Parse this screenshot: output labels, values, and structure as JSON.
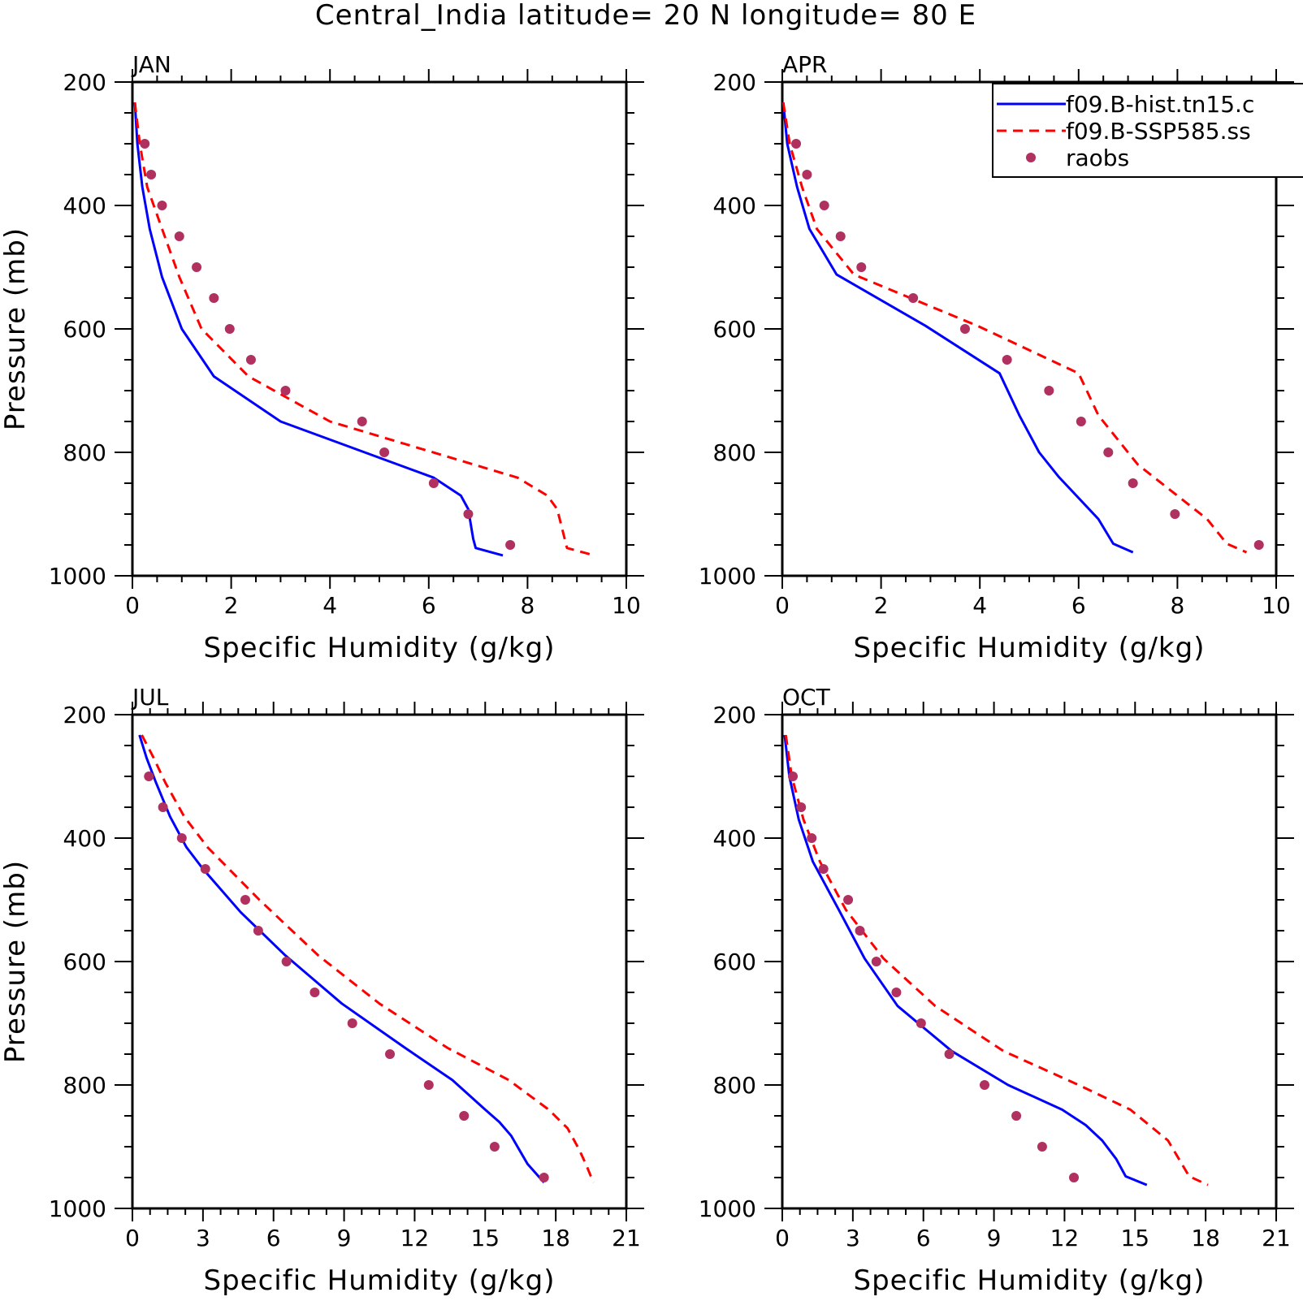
{
  "suptitle": "Central_India  latitude= 20 N longitude= 80 E",
  "legend": {
    "placement": "top-right",
    "entries": [
      {
        "label": "f09.B-hist.tn15.c",
        "color": "#0000ff",
        "style": "solid"
      },
      {
        "label": "f09.B-SSP585.ss",
        "color": "#ff0000",
        "style": "dashed"
      },
      {
        "label": "raobs",
        "color": "#b03060",
        "style": "dot"
      }
    ]
  },
  "chart_data": [
    {
      "type": "line",
      "title": "JAN",
      "xlabel": "Specific Humidity (g/kg)",
      "ylabel": "Pressure (mb)",
      "xlim": [
        0,
        10
      ],
      "ylim": [
        1000,
        200
      ],
      "xticks": [
        "0",
        "2",
        "4",
        "6",
        "8",
        "10"
      ],
      "yticks": [
        "200",
        "400",
        "600",
        "800",
        "1000"
      ],
      "series": [
        {
          "name": "f09.B-hist.tn15.c",
          "color": "#0000ff",
          "style": "solid",
          "x": [
            0.05,
            0.1,
            0.2,
            0.35,
            0.6,
            1.0,
            1.65,
            3.0,
            6.1,
            6.65,
            6.8,
            6.9,
            6.95,
            7.5
          ],
          "y": [
            233,
            300,
            370,
            438,
            516,
            600,
            677,
            750,
            841,
            870,
            892,
            940,
            955,
            967
          ]
        },
        {
          "name": "f09.B-SSP585.ss",
          "color": "#ff0000",
          "style": "dashed",
          "x": [
            0.05,
            0.15,
            0.3,
            0.6,
            0.95,
            1.4,
            2.35,
            4.0,
            7.8,
            8.4,
            8.6,
            8.8,
            9.35
          ],
          "y": [
            233,
            300,
            370,
            438,
            516,
            600,
            677,
            750,
            841,
            870,
            892,
            955,
            967
          ]
        },
        {
          "name": "raobs",
          "color": "#b03060",
          "style": "dot",
          "x": [
            0.25,
            0.38,
            0.6,
            0.95,
            1.3,
            1.65,
            1.97,
            2.4,
            3.1,
            4.65,
            5.1,
            6.1,
            6.8,
            7.65
          ],
          "y": [
            300,
            350,
            400,
            450,
            500,
            550,
            600,
            650,
            700,
            750,
            800,
            850,
            900,
            950
          ]
        }
      ]
    },
    {
      "type": "line",
      "title": "APR",
      "xlabel": "Specific Humidity (g/kg)",
      "ylabel": "",
      "xlim": [
        0,
        10
      ],
      "ylim": [
        1000,
        200
      ],
      "xticks": [
        "0",
        "2",
        "4",
        "6",
        "8",
        "10"
      ],
      "yticks": [
        "200",
        "400",
        "600",
        "800",
        "1000"
      ],
      "series": [
        {
          "name": "f09.B-hist.tn15.c",
          "color": "#0000ff",
          "style": "solid",
          "x": [
            0.02,
            0.1,
            0.3,
            0.55,
            1.1,
            2.9,
            4.4,
            4.8,
            5.2,
            5.6,
            6.4,
            6.7,
            7.1
          ],
          "y": [
            233,
            300,
            370,
            438,
            512,
            595,
            672,
            740,
            800,
            840,
            908,
            948,
            962
          ]
        },
        {
          "name": "f09.B-SSP585.ss",
          "color": "#ff0000",
          "style": "dashed",
          "x": [
            0.02,
            0.15,
            0.4,
            0.7,
            1.45,
            3.95,
            6.0,
            6.4,
            7.2,
            8.6,
            9.0,
            9.4
          ],
          "y": [
            233,
            300,
            370,
            438,
            512,
            595,
            672,
            740,
            820,
            908,
            948,
            962
          ]
        },
        {
          "name": "raobs",
          "color": "#b03060",
          "style": "dot",
          "x": [
            0.28,
            0.5,
            0.85,
            1.18,
            1.6,
            2.65,
            3.7,
            4.55,
            5.4,
            6.05,
            6.6,
            7.1,
            7.95,
            9.65
          ],
          "y": [
            300,
            350,
            400,
            450,
            500,
            550,
            600,
            650,
            700,
            750,
            800,
            850,
            900,
            950
          ]
        }
      ]
    },
    {
      "type": "line",
      "title": "JUL",
      "xlabel": "Specific Humidity (g/kg)",
      "ylabel": "Pressure (mb)",
      "xlim": [
        0,
        21
      ],
      "ylim": [
        1000,
        200
      ],
      "xticks": [
        "0",
        "3",
        "6",
        "9",
        "12",
        "15",
        "18",
        "21"
      ],
      "yticks": [
        "200",
        "400",
        "600",
        "800",
        "1000"
      ],
      "series": [
        {
          "name": "f09.B-hist.tn15.c",
          "color": "#0000ff",
          "style": "solid",
          "x": [
            0.3,
            0.6,
            1.0,
            1.6,
            2.3,
            3.0,
            4.6,
            6.5,
            8.9,
            11.6,
            13.6,
            15.0,
            15.6,
            16.1,
            16.8,
            17.5
          ],
          "y": [
            233,
            270,
            310,
            365,
            415,
            450,
            520,
            590,
            668,
            740,
            792,
            840,
            860,
            882,
            928,
            958
          ]
        },
        {
          "name": "f09.B-SSP585.ss",
          "color": "#ff0000",
          "style": "dashed",
          "x": [
            0.4,
            0.9,
            1.4,
            2.2,
            3.2,
            5.4,
            7.9,
            10.5,
            13.4,
            16.0,
            17.7,
            18.5,
            19.0,
            19.3,
            19.6
          ],
          "y": [
            233,
            270,
            310,
            365,
            415,
            500,
            590,
            668,
            740,
            792,
            840,
            870,
            905,
            930,
            958
          ]
        },
        {
          "name": "raobs",
          "color": "#b03060",
          "style": "dot",
          "x": [
            0.7,
            1.3,
            2.1,
            3.1,
            4.8,
            5.35,
            6.55,
            7.75,
            9.35,
            10.95,
            12.6,
            14.1,
            15.4,
            17.5
          ],
          "y": [
            300,
            350,
            400,
            450,
            500,
            550,
            600,
            650,
            700,
            750,
            800,
            850,
            900,
            950
          ]
        }
      ]
    },
    {
      "type": "line",
      "title": "OCT",
      "xlabel": "Specific Humidity (g/kg)",
      "ylabel": "",
      "xlim": [
        0,
        21
      ],
      "ylim": [
        1000,
        200
      ],
      "xticks": [
        "0",
        "3",
        "6",
        "9",
        "12",
        "15",
        "18",
        "21"
      ],
      "yticks": [
        "200",
        "400",
        "600",
        "800",
        "1000"
      ],
      "series": [
        {
          "name": "f09.B-hist.tn15.c",
          "color": "#0000ff",
          "style": "solid",
          "x": [
            0.1,
            0.3,
            0.7,
            1.3,
            2.4,
            3.5,
            4.9,
            7.2,
            9.6,
            11.9,
            12.9,
            13.6,
            14.2,
            14.6,
            15.5
          ],
          "y": [
            233,
            300,
            370,
            438,
            516,
            595,
            672,
            745,
            800,
            840,
            865,
            890,
            920,
            948,
            962
          ]
        },
        {
          "name": "f09.B-SSP585.ss",
          "color": "#ff0000",
          "style": "dashed",
          "x": [
            0.15,
            0.4,
            0.9,
            1.6,
            2.7,
            4.3,
            6.5,
            9.4,
            12.6,
            14.8,
            16.4,
            17.3,
            18.1
          ],
          "y": [
            233,
            300,
            370,
            438,
            516,
            595,
            672,
            745,
            800,
            840,
            890,
            948,
            962
          ]
        },
        {
          "name": "raobs",
          "color": "#b03060",
          "style": "dot",
          "x": [
            0.45,
            0.8,
            1.25,
            1.75,
            2.8,
            3.3,
            4.0,
            4.85,
            5.9,
            7.1,
            8.6,
            9.95,
            11.05,
            12.4
          ],
          "y": [
            300,
            350,
            400,
            450,
            500,
            550,
            600,
            650,
            700,
            750,
            800,
            850,
            900,
            950
          ]
        }
      ]
    }
  ]
}
